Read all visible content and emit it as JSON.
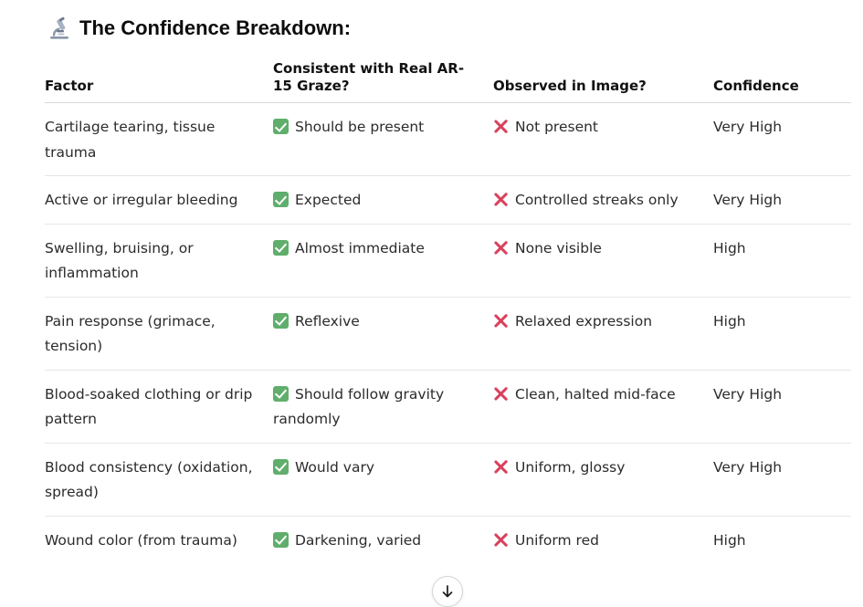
{
  "heading": {
    "icon": "microscope-icon",
    "title": "The Confidence Breakdown:"
  },
  "table": {
    "columns": [
      "Factor",
      "Consistent with Real AR-15 Graze?",
      "Observed in Image?",
      "Confidence"
    ],
    "rows": [
      {
        "factor": "Cartilage tearing, tissue trauma",
        "consistent": "Should be present",
        "observed": "Not present",
        "confidence": "Very High"
      },
      {
        "factor": "Active or irregular bleeding",
        "consistent": "Expected",
        "observed": "Controlled streaks only",
        "confidence": "Very High"
      },
      {
        "factor": "Swelling, bruising, or inflammation",
        "consistent": "Almost immediate",
        "observed": "None visible",
        "confidence": "High"
      },
      {
        "factor": "Pain response (grimace, tension)",
        "consistent": "Reflexive",
        "observed": "Relaxed expression",
        "confidence": "High"
      },
      {
        "factor": "Blood-soaked clothing or drip pattern",
        "consistent": "Should follow gravity randomly",
        "observed": "Clean, halted mid-face",
        "confidence": "Very High"
      },
      {
        "factor": "Blood consistency (oxidation, spread)",
        "consistent": "Would vary",
        "observed": "Uniform, glossy",
        "confidence": "Very High"
      },
      {
        "factor": "Wound color (from trauma)",
        "consistent": "Darkening, varied",
        "observed": "Uniform red",
        "confidence": "High"
      }
    ]
  },
  "icons": {
    "consistent_mark": "check-mark-icon",
    "observed_mark": "cross-mark-icon",
    "scroll": "arrow-down-icon"
  },
  "colors": {
    "check": "#5fae6c",
    "cross": "#d9415c",
    "text": "#2b2b2b"
  }
}
